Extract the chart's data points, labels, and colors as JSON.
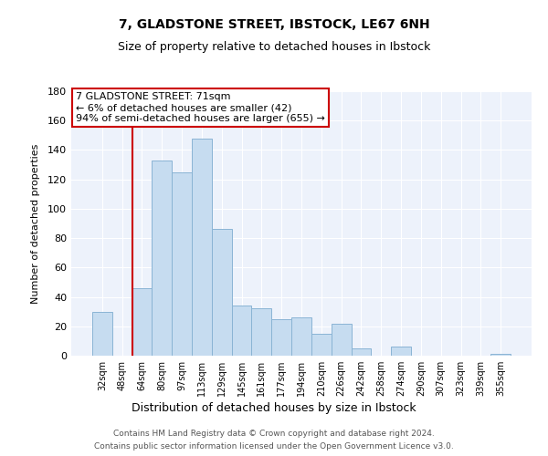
{
  "title1": "7, GLADSTONE STREET, IBSTOCK, LE67 6NH",
  "title2": "Size of property relative to detached houses in Ibstock",
  "xlabel": "Distribution of detached houses by size in Ibstock",
  "ylabel": "Number of detached properties",
  "bar_labels": [
    "32sqm",
    "48sqm",
    "64sqm",
    "80sqm",
    "97sqm",
    "113sqm",
    "129sqm",
    "145sqm",
    "161sqm",
    "177sqm",
    "194sqm",
    "210sqm",
    "226sqm",
    "242sqm",
    "258sqm",
    "274sqm",
    "290sqm",
    "307sqm",
    "323sqm",
    "339sqm",
    "355sqm"
  ],
  "bar_values": [
    30,
    0,
    46,
    133,
    125,
    148,
    86,
    34,
    32,
    25,
    26,
    15,
    22,
    5,
    0,
    6,
    0,
    0,
    0,
    0,
    1
  ],
  "bar_color": "#c6dcf0",
  "bar_edgecolor": "#8ab4d4",
  "vline_color": "#cc0000",
  "annotation_box_color": "#ffffff",
  "annotation_box_edgecolor": "#cc0000",
  "property_label": "7 GLADSTONE STREET: 71sqm",
  "line1": "← 6% of detached houses are smaller (42)",
  "line2": "94% of semi-detached houses are larger (655) →",
  "ylim": [
    0,
    180
  ],
  "yticks": [
    0,
    20,
    40,
    60,
    80,
    100,
    120,
    140,
    160,
    180
  ],
  "footer1": "Contains HM Land Registry data © Crown copyright and database right 2024.",
  "footer2": "Contains public sector information licensed under the Open Government Licence v3.0.",
  "plot_bg_color": "#edf2fb",
  "grid_color": "#ffffff"
}
